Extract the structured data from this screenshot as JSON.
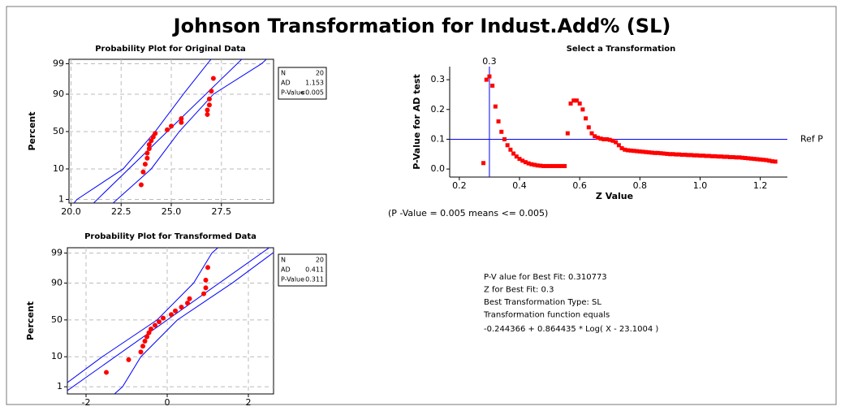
{
  "title": "Johnson Transformation for Indust.Add% (SL)",
  "chart_data": [
    {
      "type": "probability",
      "title": "Probability Plot for Original Data",
      "ylabel": "Percent",
      "yscale": "normal-probability",
      "xlim": [
        19.9,
        30.1
      ],
      "ylim": [
        0.71,
        99.34
      ],
      "xticks": [
        {
          "value": 20,
          "label": "20.0"
        },
        22.5,
        {
          "value": 25,
          "label": "25.0"
        },
        27.5
      ],
      "yticks": [
        1,
        10,
        50,
        90,
        99
      ],
      "grid": true,
      "point_color": "#ff0000",
      "line_color": "#0000ff",
      "points": {
        "x": [
          23.5,
          23.6,
          23.7,
          23.8,
          23.8,
          23.9,
          23.9,
          24.0,
          24.1,
          24.2,
          24.8,
          25.0,
          25.5,
          25.5,
          26.8,
          26.8,
          26.9,
          26.9,
          27.0,
          27.1
        ],
        "y": [
          3.4,
          8.3,
          13.2,
          18.1,
          23.0,
          27.9,
          32.8,
          37.7,
          42.6,
          47.5,
          52.5,
          57.4,
          62.3,
          67.2,
          72.1,
          77.0,
          81.9,
          86.8,
          91.7,
          96.6
        ]
      },
      "fit_line": {
        "x": [
          20.94,
          28.66
        ],
        "y": [
          0.5,
          99.5
        ]
      },
      "ci_lower": {
        "x": [
          20.0,
          20.3,
          22.6,
          24.2,
          25.6,
          26.8,
          27.1
        ],
        "y": [
          0.5,
          1,
          10,
          50,
          90,
          99,
          99.5
        ]
      },
      "ci_upper": {
        "x": [
          21.9,
          22.3,
          24.0,
          25.4,
          27.1,
          29.5,
          29.9
        ],
        "y": [
          0.5,
          1,
          10,
          50,
          90,
          99,
          99.5
        ]
      },
      "stats": {
        "labels": [
          "N",
          "AD",
          "P-Value"
        ],
        "values": [
          20,
          1.153,
          "<0.005"
        ]
      }
    },
    {
      "type": "probability",
      "title": "Probability Plot for Transformed Data",
      "ylabel": "Percent",
      "yscale": "normal-probability",
      "xlim": [
        -2.46,
        2.62
      ],
      "ylim": [
        0.5,
        99.4
      ],
      "xticks": [
        -2,
        0,
        2
      ],
      "yticks": [
        1,
        10,
        50,
        90,
        99
      ],
      "grid": true,
      "point_color": "#ff0000",
      "line_color": "#0000ff",
      "points": {
        "x": [
          -1.5,
          -0.95,
          -0.65,
          -0.6,
          -0.55,
          -0.5,
          -0.45,
          -0.4,
          -0.3,
          -0.2,
          -0.1,
          0.1,
          0.2,
          0.35,
          0.5,
          0.55,
          0.9,
          0.95,
          0.95,
          1.0
        ],
        "y": [
          3.4,
          8.3,
          13.2,
          18.1,
          23.0,
          27.9,
          32.8,
          37.7,
          42.6,
          47.5,
          52.5,
          57.4,
          62.3,
          67.2,
          72.1,
          77.0,
          81.9,
          86.8,
          91.7,
          96.6
        ]
      },
      "fit_line": {
        "x": [
          -2.576,
          2.576
        ],
        "y": [
          0.5,
          99.5
        ]
      },
      "ci_lower": {
        "x": [
          -2.9,
          -2.6,
          -1.6,
          -0.25,
          0.65,
          1.1,
          1.3
        ],
        "y": [
          0.5,
          1,
          10,
          50,
          90,
          99,
          99.5
        ]
      },
      "ci_upper": {
        "x": [
          -1.3,
          -1.1,
          -0.65,
          0.25,
          1.6,
          2.6,
          2.9
        ],
        "y": [
          0.5,
          1,
          10,
          50,
          90,
          99,
          99.5
        ]
      },
      "stats": {
        "labels": [
          "N",
          "AD",
          "P-Value"
        ],
        "values": [
          20,
          0.411,
          0.311
        ]
      }
    },
    {
      "type": "scatter",
      "title": "Select a Transformation",
      "xlabel": "Z Value",
      "ylabel": "P-Value for AD test",
      "xlim": [
        0.168,
        1.29
      ],
      "ylim": [
        -0.027,
        0.344
      ],
      "xticks": [
        0.2,
        0.4,
        0.6,
        0.8,
        {
          "value": 1,
          "label": "1.0"
        },
        1.2
      ],
      "yticks": [
        {
          "value": 0,
          "label": "0.0"
        },
        0.1,
        0.2,
        0.3
      ],
      "color": "#ff0000",
      "line_color": "#0000ff",
      "ref_line": {
        "value": 0.1,
        "label": "Ref P"
      },
      "best_z": 0.3,
      "x": [
        0.28,
        0.29,
        0.3,
        0.31,
        0.32,
        0.33,
        0.34,
        0.35,
        0.36,
        0.37,
        0.38,
        0.39,
        0.4,
        0.41,
        0.42,
        0.43,
        0.44,
        0.45,
        0.46,
        0.47,
        0.48,
        0.49,
        0.5,
        0.51,
        0.52,
        0.53,
        0.54,
        0.55,
        0.56,
        0.57,
        0.58,
        0.59,
        0.6,
        0.61,
        0.62,
        0.63,
        0.64,
        0.65,
        0.66,
        0.67,
        0.68,
        0.69,
        0.7,
        0.71,
        0.72,
        0.73,
        0.74,
        0.75,
        0.76,
        0.77,
        0.78,
        0.79,
        0.8,
        0.81,
        0.82,
        0.83,
        0.84,
        0.85,
        0.86,
        0.87,
        0.88,
        0.89,
        0.9,
        0.91,
        0.92,
        0.93,
        0.94,
        0.95,
        0.96,
        0.97,
        0.98,
        0.99,
        1.0,
        1.01,
        1.02,
        1.03,
        1.04,
        1.05,
        1.06,
        1.07,
        1.08,
        1.09,
        1.1,
        1.11,
        1.12,
        1.13,
        1.14,
        1.15,
        1.16,
        1.17,
        1.18,
        1.19,
        1.2,
        1.21,
        1.22,
        1.23,
        1.24,
        1.25
      ],
      "values": [
        0.02,
        0.3,
        0.311,
        0.28,
        0.21,
        0.16,
        0.125,
        0.1,
        0.08,
        0.065,
        0.052,
        0.042,
        0.034,
        0.028,
        0.023,
        0.019,
        0.016,
        0.014,
        0.012,
        0.011,
        0.01,
        0.01,
        0.01,
        0.01,
        0.01,
        0.01,
        0.01,
        0.01,
        0.12,
        0.22,
        0.23,
        0.23,
        0.22,
        0.2,
        0.17,
        0.14,
        0.12,
        0.11,
        0.105,
        0.102,
        0.1,
        0.1,
        0.098,
        0.095,
        0.09,
        0.08,
        0.07,
        0.065,
        0.063,
        0.062,
        0.061,
        0.06,
        0.059,
        0.058,
        0.057,
        0.056,
        0.055,
        0.054,
        0.054,
        0.053,
        0.052,
        0.051,
        0.05,
        0.05,
        0.049,
        0.049,
        0.048,
        0.048,
        0.047,
        0.047,
        0.046,
        0.046,
        0.045,
        0.045,
        0.044,
        0.044,
        0.043,
        0.043,
        0.042,
        0.042,
        0.041,
        0.041,
        0.04,
        0.04,
        0.039,
        0.039,
        0.038,
        0.037,
        0.036,
        0.035,
        0.034,
        0.033,
        0.032,
        0.031,
        0.03,
        0.028,
        0.026,
        0.025
      ]
    }
  ],
  "note": "(P -Value = 0.005 means <= 0.005)",
  "summary": [
    "P-V alue for Best Fit: 0.310773",
    "Z for Best Fit: 0.3",
    "Best Transformation Type: SL",
    "Transformation function equals",
    "-0.244366 + 0.864435 * Log( X - 23.1004 )"
  ]
}
